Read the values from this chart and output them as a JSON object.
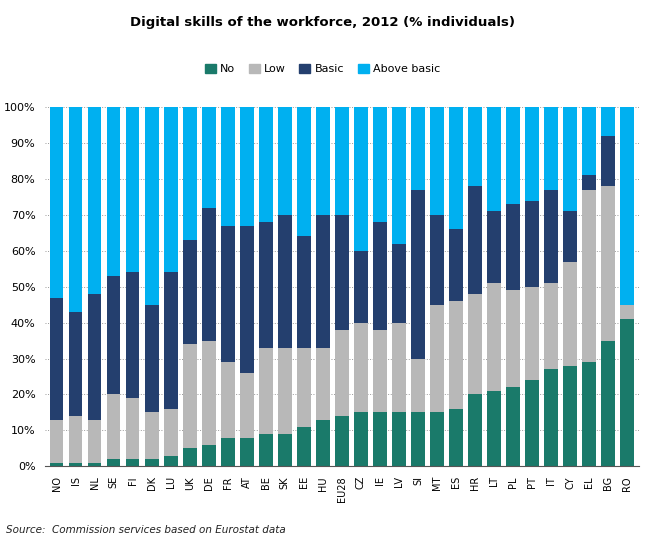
{
  "title": "Digital skills of the workforce, 2012 (% individuals)",
  "source": "Source:  Commission services based on Eurostat data",
  "categories": [
    "NO",
    "IS",
    "NL",
    "SE",
    "FI",
    "DK",
    "LU",
    "UK",
    "DE",
    "FR",
    "AT",
    "BE",
    "SK",
    "EE",
    "HU",
    "EU28",
    "CZ",
    "IE",
    "LV",
    "SI",
    "MT",
    "ES",
    "HR",
    "LT",
    "PL",
    "PT",
    "IT",
    "CY",
    "EL",
    "BG",
    "RO"
  ],
  "no_skills": [
    1,
    1,
    1,
    2,
    2,
    2,
    3,
    5,
    6,
    8,
    8,
    9,
    9,
    11,
    13,
    14,
    15,
    15,
    15,
    15,
    15,
    16,
    20,
    21,
    22,
    24,
    27,
    28,
    29,
    35,
    41
  ],
  "low_skills": [
    12,
    13,
    12,
    18,
    17,
    13,
    13,
    29,
    29,
    21,
    18,
    24,
    24,
    22,
    20,
    24,
    25,
    23,
    25,
    15,
    30,
    30,
    28,
    30,
    27,
    26,
    24,
    29,
    48,
    43,
    4
  ],
  "basic_skills": [
    34,
    29,
    35,
    33,
    35,
    30,
    38,
    29,
    37,
    38,
    41,
    35,
    37,
    31,
    37,
    32,
    20,
    30,
    22,
    47,
    25,
    20,
    30,
    20,
    24,
    24,
    26,
    14,
    4,
    14,
    0
  ],
  "above_basic": [
    53,
    57,
    52,
    47,
    46,
    55,
    46,
    37,
    28,
    33,
    33,
    32,
    30,
    36,
    30,
    30,
    40,
    32,
    38,
    23,
    30,
    34,
    22,
    29,
    27,
    26,
    23,
    29,
    19,
    8,
    55
  ],
  "colors": {
    "no": "#1a7a6a",
    "low": "#b8b8b8",
    "basic": "#243f6e",
    "above_basic": "#00b0f0"
  },
  "ylim": [
    0,
    100
  ],
  "yticks": [
    0,
    10,
    20,
    30,
    40,
    50,
    60,
    70,
    80,
    90,
    100
  ]
}
